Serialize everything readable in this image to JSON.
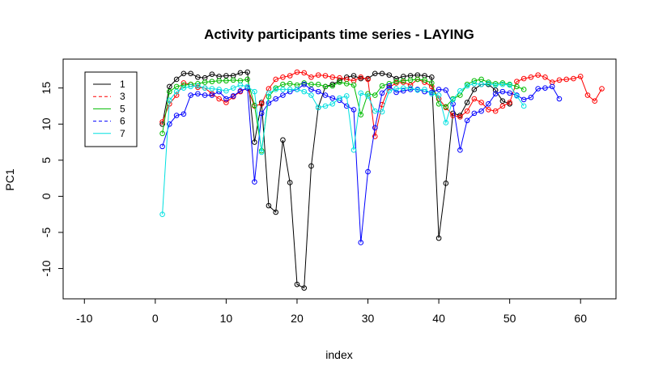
{
  "chart_data": {
    "type": "line",
    "title": "Activity participants time series -  LAYING",
    "xlabel": "index",
    "ylabel": "PC1",
    "xlim": [
      -13,
      65
    ],
    "ylim": [
      -14.2,
      19.0
    ],
    "xticks": [
      -10,
      0,
      10,
      20,
      30,
      40,
      50,
      60
    ],
    "yticks": [
      -10,
      -5,
      0,
      5,
      10,
      15
    ],
    "legend_position": "top-left",
    "series": [
      {
        "name": "1",
        "color": "#000000",
        "dash": "solid",
        "values": [
          10.0,
          15.2,
          16.2,
          17.0,
          17.0,
          16.5,
          16.4,
          16.9,
          16.6,
          16.7,
          16.7,
          17.1,
          17.2,
          7.5,
          13.0,
          -1.3,
          -2.2,
          7.8,
          1.9,
          -12.2,
          -12.7,
          4.2,
          12.3,
          15.2,
          15.5,
          16.0,
          16.5,
          16.7,
          16.3,
          16.3,
          17.0,
          17.0,
          16.8,
          16.3,
          16.6,
          16.7,
          16.8,
          16.7,
          16.5,
          -5.8,
          1.8,
          11.5,
          11.2,
          13.0,
          14.8,
          15.5,
          15.5,
          14.7,
          13.2,
          12.8
        ]
      },
      {
        "name": "3",
        "color": "#ff0000",
        "dash": "4,3",
        "values": [
          10.3,
          12.8,
          14.0,
          15.7,
          15.5,
          15.1,
          15.0,
          14.2,
          13.5,
          13.0,
          13.8,
          14.5,
          15.0,
          12.5,
          12.8,
          14.9,
          16.2,
          16.5,
          16.7,
          17.2,
          17.1,
          16.5,
          16.8,
          16.7,
          16.5,
          16.4,
          16.2,
          16.0,
          16.5,
          16.2,
          8.3,
          12.7,
          15.1,
          15.7,
          15.8,
          15.4,
          16.2,
          15.8,
          15.2,
          13.5,
          12.3,
          11.2,
          11.0,
          11.8,
          13.5,
          13.0,
          12.0,
          11.8,
          12.5,
          13.0,
          15.9,
          16.3,
          16.5,
          16.8,
          16.5,
          15.8,
          16.1,
          16.2,
          16.3,
          16.6,
          14.0,
          13.2,
          14.9
        ]
      },
      {
        "name": "5",
        "color": "#00bb00",
        "dash": "solid",
        "values": [
          8.7,
          14.5,
          15.2,
          15.4,
          15.5,
          15.6,
          15.8,
          15.9,
          16.0,
          16.0,
          16.1,
          16.0,
          16.2,
          12.6,
          6.3,
          13.8,
          15.0,
          15.5,
          15.6,
          15.4,
          15.7,
          15.5,
          15.5,
          15.2,
          15.3,
          15.8,
          15.6,
          15.4,
          11.3,
          14.2,
          14.0,
          15.3,
          15.6,
          15.9,
          16.0,
          16.1,
          16.2,
          16.1,
          15.7,
          12.8,
          12.4,
          13.5,
          14.0,
          15.5,
          16.0,
          16.2,
          15.8,
          15.6,
          15.7,
          15.5,
          15.2,
          14.8
        ]
      },
      {
        "name": "6",
        "color": "#0000ff",
        "dash": "4,3",
        "values": [
          6.9,
          10.0,
          11.2,
          11.4,
          14.0,
          14.2,
          14.0,
          14.0,
          14.5,
          13.5,
          13.9,
          14.6,
          15.0,
          2.0,
          11.5,
          12.9,
          13.5,
          14.0,
          14.5,
          14.8,
          15.5,
          14.8,
          14.5,
          14.0,
          13.6,
          13.3,
          12.5,
          12.0,
          -6.4,
          3.4,
          9.5,
          14.3,
          15.3,
          14.4,
          14.6,
          14.8,
          14.8,
          14.5,
          14.4,
          14.8,
          14.7,
          12.8,
          6.4,
          10.5,
          11.5,
          11.8,
          12.8,
          14.2,
          14.5,
          14.3,
          14.0,
          13.4,
          13.7,
          14.9,
          15.0,
          15.2,
          13.5
        ]
      },
      {
        "name": "7",
        "color": "#00e0e0",
        "dash": "solid",
        "values": [
          -2.5,
          13.3,
          14.5,
          15.0,
          15.2,
          15.3,
          15.0,
          14.9,
          14.8,
          14.6,
          15.0,
          15.4,
          15.2,
          14.5,
          6.1,
          14.3,
          14.8,
          14.8,
          14.8,
          14.8,
          14.5,
          14.0,
          12.3,
          12.5,
          12.8,
          13.6,
          13.9,
          6.4,
          14.3,
          13.9,
          11.8,
          11.7,
          14.6,
          14.9,
          15.0,
          15.0,
          14.7,
          14.8,
          14.2,
          14.0,
          10.2,
          13.4,
          14.6,
          15.3,
          15.6,
          15.5,
          15.6,
          15.4,
          15.5,
          15.4,
          13.9,
          12.5
        ]
      }
    ]
  }
}
